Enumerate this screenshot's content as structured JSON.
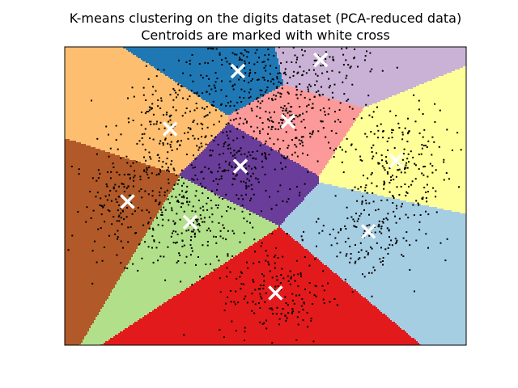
{
  "chart_data": {
    "type": "scatter",
    "title": "K-means clustering on the digits dataset (PCA-reduced data)",
    "subtitle": "Centroids are marked with white cross",
    "xlabel": "",
    "ylabel": "",
    "xlim": [
      -8,
      8
    ],
    "ylim": [
      -8,
      8
    ],
    "axis_ticks_visible": false,
    "grid": false,
    "legend": "none",
    "centroid_marker": "x",
    "centroid_color": "#ffffff",
    "point_color": "#000000",
    "clusters": [
      {
        "color": "#1f78b4",
        "centroid": [
          -1.1,
          6.7
        ]
      },
      {
        "color": "#cab2d6",
        "centroid": [
          2.2,
          7.3
        ]
      },
      {
        "color": "#fdbf6f",
        "centroid": [
          -3.8,
          3.6
        ]
      },
      {
        "color": "#fb9a99",
        "centroid": [
          0.9,
          4.0
        ]
      },
      {
        "color": "#ffff99",
        "centroid": [
          5.2,
          1.9
        ]
      },
      {
        "color": "#6a3d9a",
        "centroid": [
          -1.0,
          1.6
        ]
      },
      {
        "color": "#b15928",
        "centroid": [
          -5.5,
          -0.3
        ]
      },
      {
        "color": "#b2df8a",
        "centroid": [
          -3.0,
          -1.4
        ]
      },
      {
        "color": "#a6cee3",
        "centroid": [
          4.1,
          -1.9
        ]
      },
      {
        "color": "#e31a1c",
        "centroid": [
          0.4,
          -5.2
        ]
      }
    ]
  }
}
